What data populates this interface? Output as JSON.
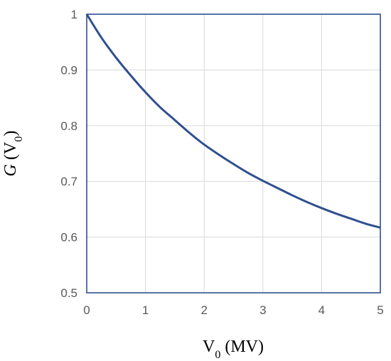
{
  "chart_data": {
    "type": "line",
    "title": "",
    "xlabel": {
      "main": "V",
      "sub": "0",
      "rest": " (MV)"
    },
    "ylabel": {
      "italic": "G",
      "open": " (V",
      "sub": "0",
      "close": ")"
    },
    "xlim": [
      0,
      5
    ],
    "ylim": [
      0.5,
      1
    ],
    "xticks": [
      "0",
      "1",
      "2",
      "3",
      "4",
      "5"
    ],
    "yticks": [
      "0.5",
      "0.6",
      "0.7",
      "0.8",
      "0.9",
      "1"
    ],
    "grid": true,
    "legend": "none",
    "series": [
      {
        "color": "#2f4f8f",
        "x": [
          0,
          0.25,
          0.5,
          0.75,
          1,
          1.25,
          1.5,
          1.75,
          2,
          2.25,
          2.5,
          2.75,
          3,
          3.25,
          3.5,
          3.75,
          4,
          4.25,
          4.5,
          4.75,
          5
        ],
        "y": [
          1.0,
          0.958,
          0.922,
          0.89,
          0.86,
          0.833,
          0.81,
          0.787,
          0.766,
          0.748,
          0.731,
          0.715,
          0.701,
          0.688,
          0.675,
          0.663,
          0.652,
          0.642,
          0.633,
          0.624,
          0.617
        ]
      }
    ]
  }
}
